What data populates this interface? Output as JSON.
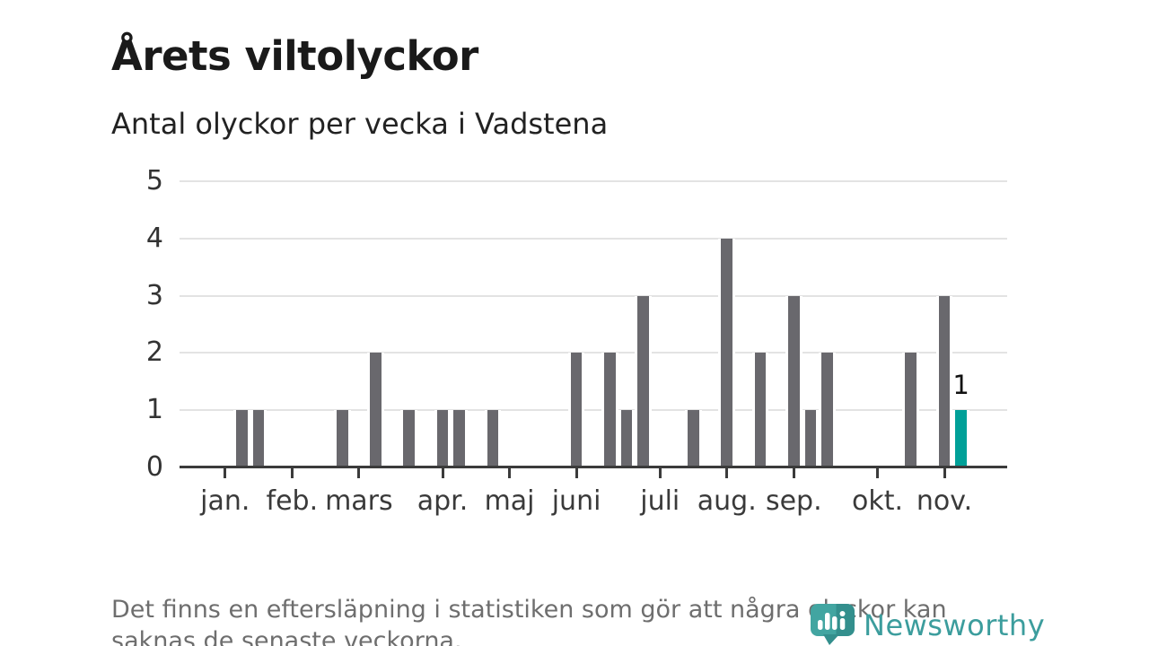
{
  "header": {
    "title": "Årets viltolyckor",
    "subtitle": "Antal olyckor per vecka i Vadstena"
  },
  "chart_data": {
    "type": "bar",
    "title": "Årets viltolyckor",
    "subtitle": "Antal olyckor per vecka i Vadstena",
    "x_unit": "week",
    "ylim": [
      0,
      5
    ],
    "yticks": [
      "0",
      "1",
      "2",
      "3",
      "4",
      "5"
    ],
    "grid": "horizontal",
    "legend": "none",
    "bars": [
      {
        "week_slot": 1,
        "value": 1
      },
      {
        "week_slot": 2,
        "value": 1
      },
      {
        "week_slot": 7,
        "value": 1
      },
      {
        "week_slot": 9,
        "value": 2
      },
      {
        "week_slot": 11,
        "value": 1
      },
      {
        "week_slot": 13,
        "value": 1
      },
      {
        "week_slot": 14,
        "value": 1
      },
      {
        "week_slot": 16,
        "value": 1
      },
      {
        "week_slot": 21,
        "value": 2
      },
      {
        "week_slot": 23,
        "value": 2
      },
      {
        "week_slot": 24,
        "value": 1
      },
      {
        "week_slot": 25,
        "value": 3
      },
      {
        "week_slot": 28,
        "value": 1
      },
      {
        "week_slot": 30,
        "value": 4
      },
      {
        "week_slot": 32,
        "value": 2
      },
      {
        "week_slot": 34,
        "value": 3
      },
      {
        "week_slot": 35,
        "value": 1
      },
      {
        "week_slot": 36,
        "value": 2
      },
      {
        "week_slot": 41,
        "value": 2
      },
      {
        "week_slot": 43,
        "value": 3
      },
      {
        "week_slot": 44,
        "value": 1,
        "highlight": true,
        "label": "1"
      }
    ],
    "month_ticks": [
      {
        "week_slot": 0,
        "label": "jan."
      },
      {
        "week_slot": 4,
        "label": "feb."
      },
      {
        "week_slot": 8,
        "label": "mars"
      },
      {
        "week_slot": 13,
        "label": "apr."
      },
      {
        "week_slot": 17,
        "label": "maj"
      },
      {
        "week_slot": 21,
        "label": "juni"
      },
      {
        "week_slot": 26,
        "label": "juli"
      },
      {
        "week_slot": 30,
        "label": "aug."
      },
      {
        "week_slot": 34,
        "label": "sep."
      },
      {
        "week_slot": 39,
        "label": "okt."
      },
      {
        "week_slot": 43,
        "label": "nov."
      }
    ],
    "colors": {
      "bar": "#69686d",
      "highlight": "#00a098",
      "grid": "#e3e3e3",
      "axis": "#3b3b3b",
      "label_text": "#333333"
    }
  },
  "footer": {
    "note": "Det finns en eftersläpning i statistiken som gör att några olyckor kan saknas de senaste veckorna.",
    "brand": "Newsworthy"
  }
}
